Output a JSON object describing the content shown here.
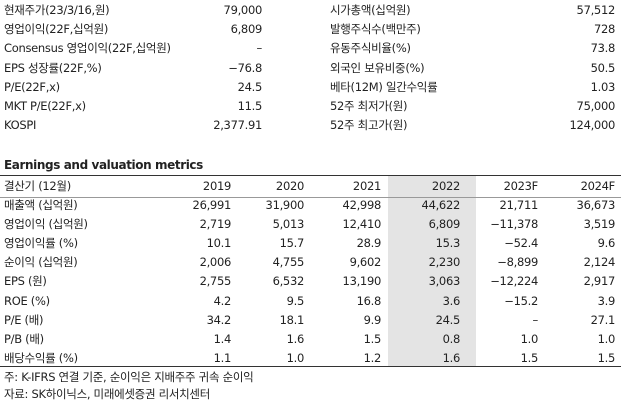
{
  "summary": {
    "rows": [
      [
        "현재주가(23/3/16,원)",
        "79,000",
        "시가총액(십억원)",
        "57,512"
      ],
      [
        "영업이익(22F,십억원)",
        "6,809",
        "발행주식수(백만주)",
        "728"
      ],
      [
        "Consensus 영업이익(22F,십억원)",
        "–",
        "유동주식비율(%)",
        "73.8"
      ],
      [
        "EPS 성장률(22F,%)",
        "−76.8",
        "외국인 보유비중(%)",
        "50.5"
      ],
      [
        "P/E(22F,x)",
        "24.5",
        "베타(12M) 일간수익률",
        "1.03"
      ],
      [
        "MKT P/E(22F,x)",
        "11.5",
        "52주 최저가(원)",
        "75,000"
      ],
      [
        "KOSPI",
        "2,377.91",
        "52주 최고가(원)",
        "124,000"
      ]
    ]
  },
  "metrics": {
    "title": "Earnings and valuation metrics",
    "header": [
      "결산기 (12월)",
      "2019",
      "2020",
      "2021",
      "2022",
      "2023F",
      "2024F"
    ],
    "rows": [
      [
        "매출액 (십억원)",
        "26,991",
        "31,900",
        "42,998",
        "44,622",
        "21,711",
        "36,673"
      ],
      [
        "영업이익 (십억원)",
        "2,719",
        "5,013",
        "12,410",
        "6,809",
        "−11,378",
        "3,519"
      ],
      [
        "영업이익률 (%)",
        "10.1",
        "15.7",
        "28.9",
        "15.3",
        "−52.4",
        "9.6"
      ],
      [
        "순이익 (십억원)",
        "2,006",
        "4,755",
        "9,602",
        "2,230",
        "−8,899",
        "2,124"
      ],
      [
        "EPS (원)",
        "2,755",
        "6,532",
        "13,190",
        "3,063",
        "−12,224",
        "2,917"
      ],
      [
        "ROE (%)",
        "4.2",
        "9.5",
        "16.8",
        "3.6",
        "−15.2",
        "3.9"
      ],
      [
        "P/E (배)",
        "34.2",
        "18.1",
        "9.9",
        "24.5",
        "–",
        "27.1"
      ],
      [
        "P/B (배)",
        "1.4",
        "1.6",
        "1.5",
        "0.8",
        "1.0",
        "1.0"
      ],
      [
        "배당수익률 (%)",
        "1.1",
        "1.0",
        "1.2",
        "1.6",
        "1.5",
        "1.5"
      ]
    ]
  },
  "notes": [
    "주: K-IFRS 연결 기준, 순이익은 지배주주 귀속 순이익",
    "자료: SK하이닉스, 미래에셋증권 리서치센터"
  ]
}
